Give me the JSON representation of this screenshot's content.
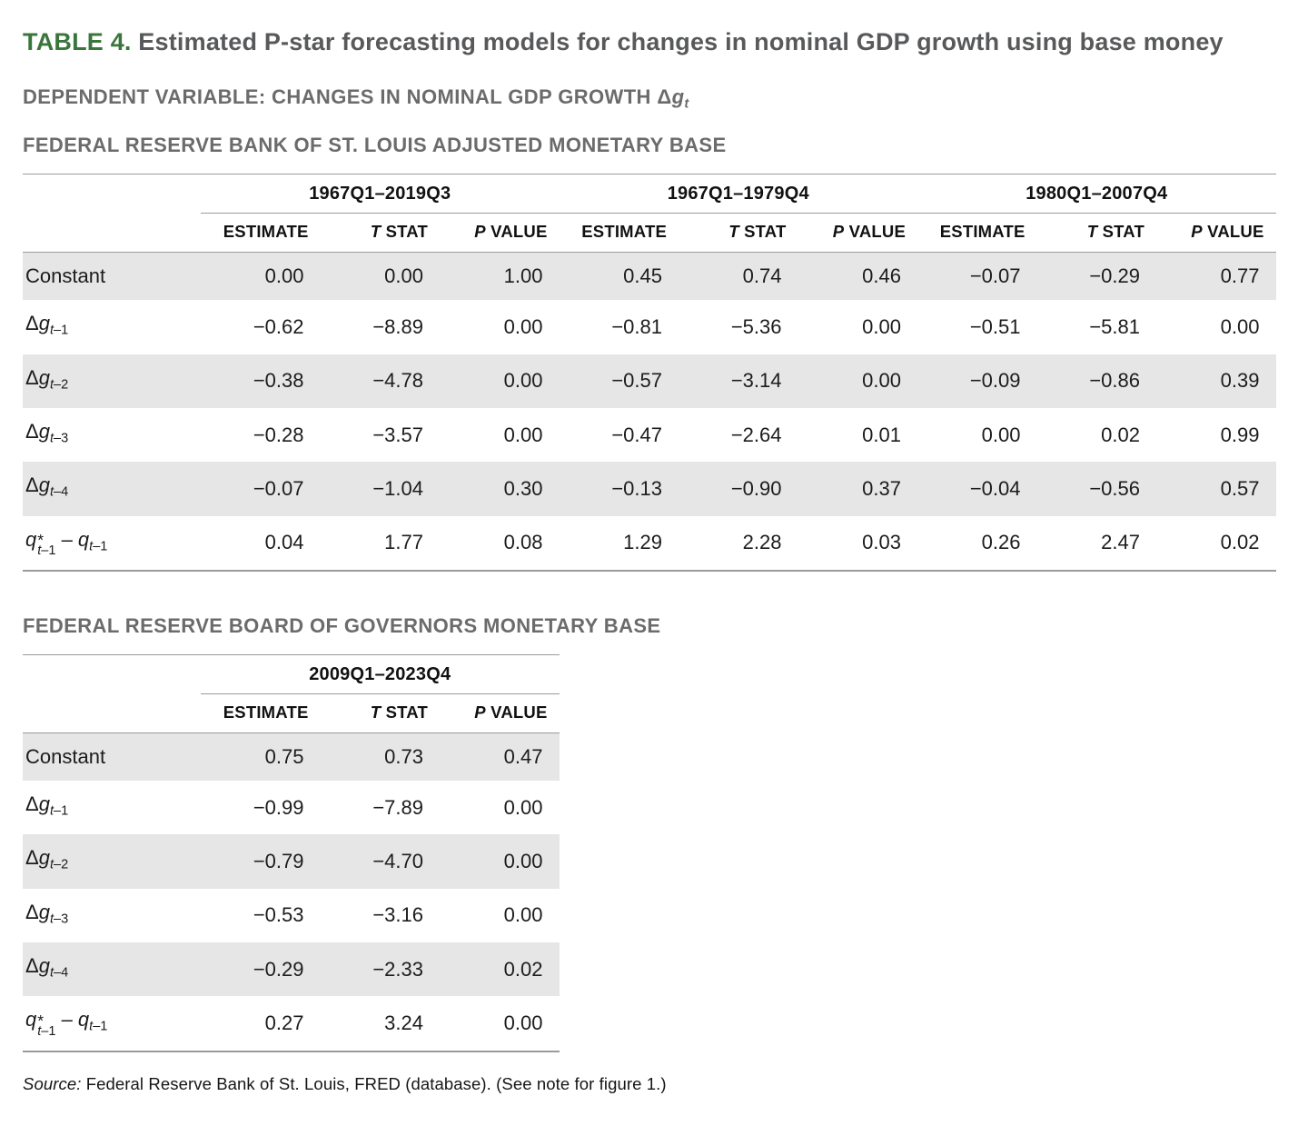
{
  "title": {
    "label": "TABLE 4.",
    "text": " Estimated P-star forecasting models for changes in nominal GDP growth using base money"
  },
  "dependent_variable": {
    "text": "DEPENDENT VARIABLE: CHANGES IN NOMINAL GDP GROWTH ",
    "math": {
      "type": "delta-g",
      "sub": "t"
    }
  },
  "colors": {
    "accent_green": "#3a763c",
    "title_gray": "#58595b",
    "heading_gray": "#6b6b6b",
    "row_shade": "#e6e6e6",
    "rule_gray": "#9b9b9b"
  },
  "tables": [
    {
      "heading": "FEDERAL RESERVE BANK OF ST. LOUIS ADJUSTED MONETARY BASE",
      "period_groups": [
        "1967Q1–2019Q3",
        "1967Q1–1979Q4",
        "1980Q1–2007Q4"
      ],
      "col_headers": [
        {
          "italic": "",
          "text": "ESTIMATE"
        },
        {
          "italic": "T",
          "text": " STAT"
        },
        {
          "italic": "P",
          "text": " VALUE"
        }
      ],
      "rows": [
        {
          "label": {
            "type": "text",
            "text": "Constant"
          },
          "values": [
            "0.00",
            "0.00",
            "1.00",
            "0.45",
            "0.74",
            "0.46",
            "−0.07",
            "−0.29",
            "0.77"
          ]
        },
        {
          "label": {
            "type": "delta-g",
            "sub": "t–1"
          },
          "values": [
            "−0.62",
            "−8.89",
            "0.00",
            "−0.81",
            "−5.36",
            "0.00",
            "−0.51",
            "−5.81",
            "0.00"
          ]
        },
        {
          "label": {
            "type": "delta-g",
            "sub": "t–2"
          },
          "values": [
            "−0.38",
            "−4.78",
            "0.00",
            "−0.57",
            "−3.14",
            "0.00",
            "−0.09",
            "−0.86",
            "0.39"
          ]
        },
        {
          "label": {
            "type": "delta-g",
            "sub": "t–3"
          },
          "values": [
            "−0.28",
            "−3.57",
            "0.00",
            "−0.47",
            "−2.64",
            "0.01",
            "0.00",
            "0.02",
            "0.99"
          ]
        },
        {
          "label": {
            "type": "delta-g",
            "sub": "t–4"
          },
          "values": [
            "−0.07",
            "−1.04",
            "0.30",
            "−0.13",
            "−0.90",
            "0.37",
            "−0.04",
            "−0.56",
            "0.57"
          ]
        },
        {
          "label": {
            "type": "q-star-diff",
            "sub": "t–1"
          },
          "values": [
            "0.04",
            "1.77",
            "0.08",
            "1.29",
            "2.28",
            "0.03",
            "0.26",
            "2.47",
            "0.02"
          ]
        }
      ]
    },
    {
      "heading": "FEDERAL RESERVE BOARD OF GOVERNORS MONETARY BASE",
      "period_groups": [
        "2009Q1–2023Q4"
      ],
      "col_headers": [
        {
          "italic": "",
          "text": "ESTIMATE"
        },
        {
          "italic": "T",
          "text": " STAT"
        },
        {
          "italic": "P",
          "text": " VALUE"
        }
      ],
      "rows": [
        {
          "label": {
            "type": "text",
            "text": "Constant"
          },
          "values": [
            "0.75",
            "0.73",
            "0.47"
          ]
        },
        {
          "label": {
            "type": "delta-g",
            "sub": "t–1"
          },
          "values": [
            "−0.99",
            "−7.89",
            "0.00"
          ]
        },
        {
          "label": {
            "type": "delta-g",
            "sub": "t–2"
          },
          "values": [
            "−0.79",
            "−4.70",
            "0.00"
          ]
        },
        {
          "label": {
            "type": "delta-g",
            "sub": "t–3"
          },
          "values": [
            "−0.53",
            "−3.16",
            "0.00"
          ]
        },
        {
          "label": {
            "type": "delta-g",
            "sub": "t–4"
          },
          "values": [
            "−0.29",
            "−2.33",
            "0.02"
          ]
        },
        {
          "label": {
            "type": "q-star-diff",
            "sub": "t–1"
          },
          "values": [
            "0.27",
            "3.24",
            "0.00"
          ]
        }
      ]
    }
  ],
  "source": {
    "label": "Source:",
    "text": " Federal Reserve Bank of St. Louis, FRED (database). (See note for figure 1.)"
  }
}
